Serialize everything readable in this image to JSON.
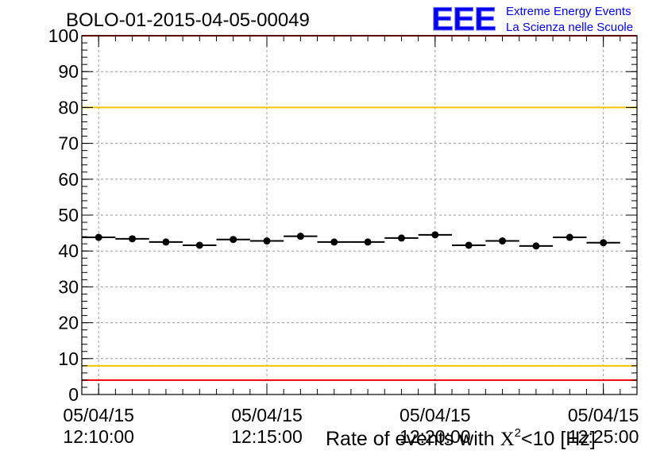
{
  "chart_data": {
    "type": "scatter",
    "title": "BOLO-01-2015-04-05-00049",
    "xlabel_prefix": "Rate of events with ",
    "xlabel_symbol": "X",
    "xlabel_sup": "2",
    "xlabel_suffix": "<10 [Hz]",
    "ylabel": "",
    "ylim": [
      0,
      100
    ],
    "yticks": [
      "0",
      "10",
      "20",
      "30",
      "40",
      "50",
      "60",
      "70",
      "80",
      "90",
      "100"
    ],
    "x_ticks": [
      {
        "date": "05/04/15",
        "time": "12:10:00"
      },
      {
        "date": "05/04/15",
        "time": "12:15:00"
      },
      {
        "date": "05/04/15",
        "time": "12:20:00"
      },
      {
        "date": "05/04/15",
        "time": "12:25:00"
      }
    ],
    "x_start": "12:09:30",
    "x_end": "12:26:00",
    "bin_width_minutes": 1,
    "points": [
      {
        "x": "12:10:00",
        "y": 43.8
      },
      {
        "x": "12:11:00",
        "y": 43.4
      },
      {
        "x": "12:12:00",
        "y": 42.5
      },
      {
        "x": "12:13:00",
        "y": 41.6
      },
      {
        "x": "12:14:00",
        "y": 43.2
      },
      {
        "x": "12:15:00",
        "y": 42.8
      },
      {
        "x": "12:16:00",
        "y": 44.1
      },
      {
        "x": "12:17:00",
        "y": 42.5
      },
      {
        "x": "12:18:00",
        "y": 42.5
      },
      {
        "x": "12:19:00",
        "y": 43.6
      },
      {
        "x": "12:20:00",
        "y": 44.5
      },
      {
        "x": "12:21:00",
        "y": 41.6
      },
      {
        "x": "12:22:00",
        "y": 42.8
      },
      {
        "x": "12:23:00",
        "y": 41.4
      },
      {
        "x": "12:24:00",
        "y": 43.8
      },
      {
        "x": "12:25:00",
        "y": 42.3
      }
    ],
    "reference_lines": [
      {
        "y": 100,
        "color": "#ee0000"
      },
      {
        "y": 80,
        "color": "#f5c400"
      },
      {
        "y": 8,
        "color": "#f5c400"
      },
      {
        "y": 4,
        "color": "#ee0000"
      }
    ],
    "grid": true,
    "marker_color": "#000000"
  },
  "logo": {
    "letters": "EEE",
    "line1": "Extreme Energy Events",
    "line2": "La Scienza nelle Scuole",
    "color": "#0000ee"
  }
}
